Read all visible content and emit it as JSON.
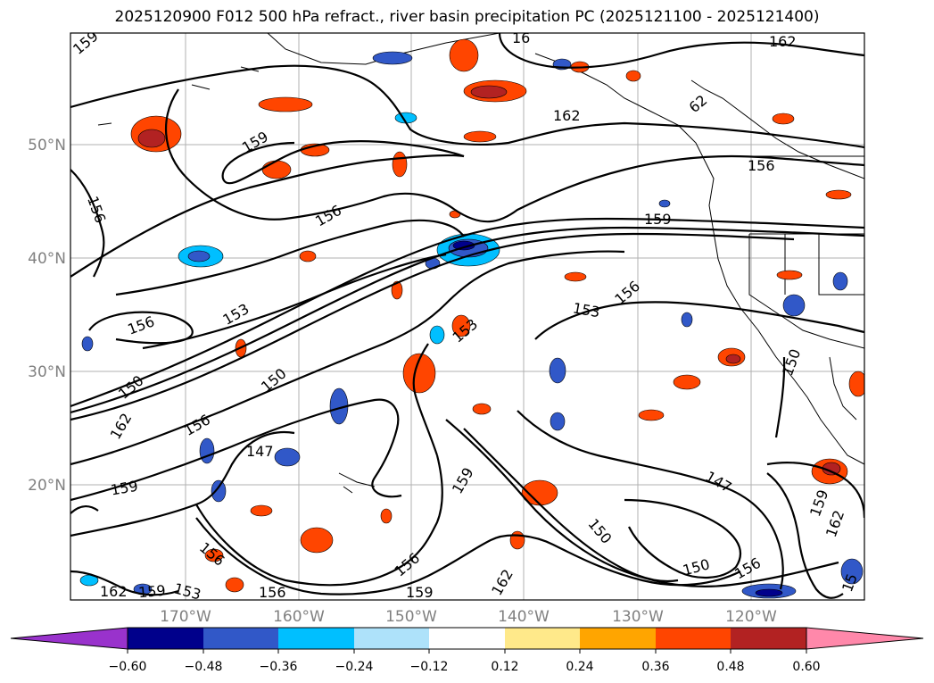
{
  "title": "2025120900 F012 500 hPa refract., river basin precipitation PC (2025121100 - 2025121400)",
  "map": {
    "lat_labels": [
      "50°N",
      "40°N",
      "30°N",
      "20°N"
    ],
    "lon_labels": [
      "170°W",
      "160°W",
      "150°W",
      "140°W",
      "130°W",
      "120°W"
    ],
    "contour_labels": [
      {
        "text": "159"
      },
      {
        "text": "16"
      },
      {
        "text": "162"
      },
      {
        "text": "162"
      },
      {
        "text": "62"
      },
      {
        "text": "159"
      },
      {
        "text": "156"
      },
      {
        "text": "156"
      },
      {
        "text": "159"
      },
      {
        "text": "156"
      },
      {
        "text": "156"
      },
      {
        "text": "153"
      },
      {
        "text": "153"
      },
      {
        "text": "156"
      },
      {
        "text": "153"
      },
      {
        "text": "150"
      },
      {
        "text": "150"
      },
      {
        "text": "150"
      },
      {
        "text": "162"
      },
      {
        "text": "156"
      },
      {
        "text": "147"
      },
      {
        "text": "159"
      },
      {
        "text": "159"
      },
      {
        "text": "147"
      },
      {
        "text": "150"
      },
      {
        "text": "150"
      },
      {
        "text": "156"
      },
      {
        "text": "162"
      },
      {
        "text": "156"
      },
      {
        "text": "159"
      },
      {
        "text": "153"
      },
      {
        "text": "156"
      },
      {
        "text": "159"
      },
      {
        "text": "162"
      },
      {
        "text": "156"
      },
      {
        "text": "159"
      },
      {
        "text": "162"
      },
      {
        "text": "15"
      }
    ],
    "colors": {
      "land_border": "#000000",
      "grid": "#b0b0b0",
      "contour": "#000000"
    }
  },
  "colorbar": {
    "ticks": [
      "−0.60",
      "−0.48",
      "−0.36",
      "−0.24",
      "−0.12",
      "0.12",
      "0.24",
      "0.36",
      "0.48",
      "0.60"
    ],
    "colors": [
      "#9932cc",
      "#00008b",
      "#3158c8",
      "#00bfff",
      "#aee2fa",
      "#ffffff",
      "#ffe98a",
      "#ffa500",
      "#ff4500",
      "#b22222",
      "#ff88aa"
    ]
  }
}
